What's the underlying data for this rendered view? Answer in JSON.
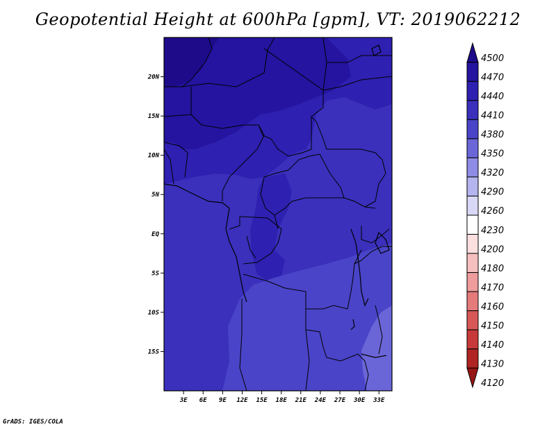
{
  "title": "Geopotential Height at 600hPa [gpm], VT: 2019062212",
  "credit": "GrADS: IGES/COLA",
  "lat_axis": {
    "labels": [
      "20N",
      "15N",
      "10N",
      "5N",
      "EQ",
      "5S",
      "10S",
      "15S"
    ],
    "values": [
      20,
      15,
      10,
      5,
      0,
      -5,
      -10,
      -15
    ],
    "range": [
      -20,
      25
    ]
  },
  "lon_axis": {
    "labels": [
      "3E",
      "6E",
      "9E",
      "12E",
      "15E",
      "18E",
      "21E",
      "24E",
      "27E",
      "30E",
      "33E"
    ],
    "values": [
      3,
      6,
      9,
      12,
      15,
      18,
      21,
      24,
      27,
      30,
      33
    ],
    "range": [
      0,
      35
    ]
  },
  "colorbar": {
    "levels": [
      "4500",
      "4470",
      "4440",
      "4410",
      "4380",
      "4350",
      "4320",
      "4290",
      "4260",
      "4230",
      "4200",
      "4180",
      "4170",
      "4160",
      "4150",
      "4140",
      "4130",
      "4120"
    ],
    "colors": [
      "#1d0b8a",
      "#2414a0",
      "#2e20b0",
      "#3a30bc",
      "#4a44c8",
      "#6a66d8",
      "#8e8ce4",
      "#b4b4ee",
      "#d8d8f6",
      "#ffffff",
      "#fce0e0",
      "#f6c0c0",
      "#ee9c9c",
      "#e47a7a",
      "#d85858",
      "#c83a3a",
      "#b02424",
      "#961414"
    ]
  },
  "field_colors": {
    "c4470": "#2414a0",
    "c4440": "#2e20b0",
    "c4410": "#3a30bc",
    "c4380": "#4a44c8",
    "c4350": "#6a66d8"
  }
}
